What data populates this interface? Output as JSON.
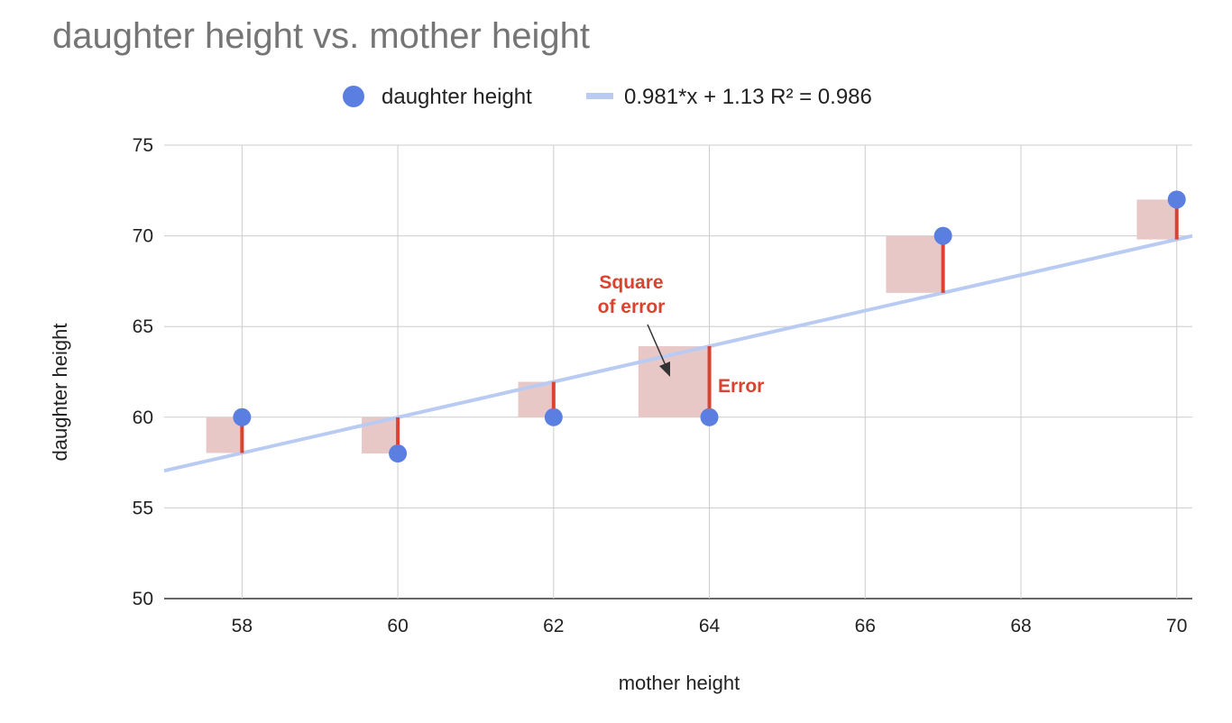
{
  "chart_data": {
    "type": "scatter",
    "title": "daughter height vs. mother height",
    "xlabel": "mother height",
    "ylabel": "daughter height",
    "xlim": [
      57,
      70.2
    ],
    "ylim": [
      50,
      75
    ],
    "x_ticks": [
      58,
      60,
      62,
      64,
      66,
      68,
      70
    ],
    "y_ticks": [
      50,
      55,
      60,
      65,
      70,
      75
    ],
    "grid": true,
    "legend_position": "top",
    "series": [
      {
        "name": "daughter height",
        "color": "#5b7fe0",
        "points": [
          {
            "x": 58,
            "y": 60
          },
          {
            "x": 60,
            "y": 58
          },
          {
            "x": 62,
            "y": 60
          },
          {
            "x": 64,
            "y": 60
          },
          {
            "x": 67,
            "y": 70
          },
          {
            "x": 70,
            "y": 72
          }
        ]
      }
    ],
    "trendline": {
      "label": "0.981*x + 1.13 R² = 0.986",
      "slope": 0.981,
      "intercept": 1.13,
      "r_squared": 0.986,
      "color": "#b9cbf2"
    },
    "annotations": {
      "square_label_line1": "Square",
      "square_label_line2": "of error",
      "error_label": "Error",
      "error_color": "#d9432f",
      "square_color": "#e8c8c7"
    }
  }
}
